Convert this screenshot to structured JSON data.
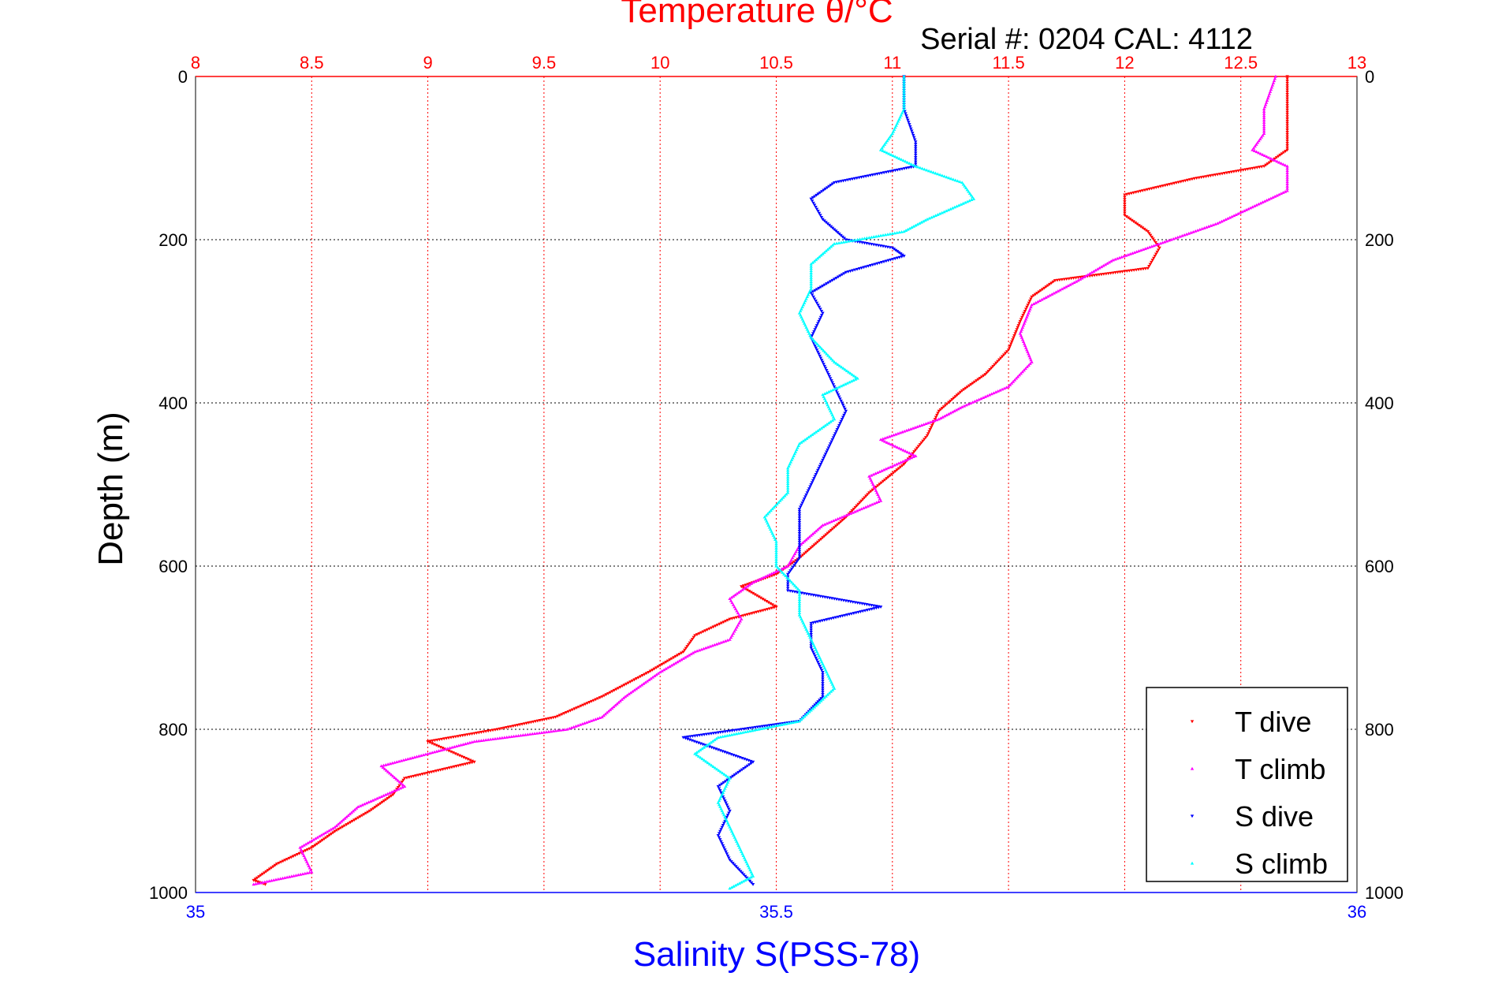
{
  "colors": {
    "temperature_axis": "#ff0000",
    "salinity_axis": "#0000ff",
    "t_dive": "#ff0000",
    "t_climb": "#ff00ff",
    "s_dive": "#0000ff",
    "s_climb": "#00ffff",
    "grid_temperature": "#ff0000",
    "grid_depth": "#000000"
  },
  "chart_data": {
    "type": "scatter",
    "title": "Temperature θ/°C",
    "subtitle": "Serial #: 0204  CAL: 4112",
    "xlabel_top": "Temperature θ/°C",
    "xlabel_bottom": "Salinity S(PSS-78)",
    "ylabel": "Depth (m)",
    "temperature_axis": {
      "range": [
        8,
        13
      ],
      "ticks": [
        "8",
        "8.5",
        "9",
        "9.5",
        "10",
        "10.5",
        "11",
        "11.5",
        "12",
        "12.5",
        "13"
      ]
    },
    "salinity_axis": {
      "range": [
        35,
        36
      ],
      "ticks": [
        "35",
        "35.5",
        "36"
      ]
    },
    "depth_axis": {
      "range": [
        0,
        1000
      ],
      "reversed": true,
      "ticks": [
        "0",
        "200",
        "400",
        "600",
        "800",
        "1000"
      ]
    },
    "grid": true,
    "legend_position": "bottom-right",
    "series": [
      {
        "name": "T dive",
        "axis": "temperature",
        "marker": "triangle-down",
        "points": [
          [
            12.7,
            0
          ],
          [
            12.7,
            30
          ],
          [
            12.7,
            60
          ],
          [
            12.7,
            90
          ],
          [
            12.6,
            110
          ],
          [
            12.3,
            125
          ],
          [
            12.0,
            145
          ],
          [
            12.0,
            170
          ],
          [
            12.1,
            190
          ],
          [
            12.15,
            210
          ],
          [
            12.1,
            235
          ],
          [
            11.7,
            250
          ],
          [
            11.6,
            270
          ],
          [
            11.55,
            300
          ],
          [
            11.5,
            335
          ],
          [
            11.4,
            365
          ],
          [
            11.3,
            385
          ],
          [
            11.2,
            410
          ],
          [
            11.15,
            440
          ],
          [
            11.05,
            475
          ],
          [
            10.9,
            510
          ],
          [
            10.8,
            540
          ],
          [
            10.7,
            565
          ],
          [
            10.6,
            590
          ],
          [
            10.5,
            610
          ],
          [
            10.35,
            625
          ],
          [
            10.5,
            650
          ],
          [
            10.3,
            665
          ],
          [
            10.15,
            685
          ],
          [
            10.1,
            705
          ],
          [
            9.95,
            730
          ],
          [
            9.75,
            760
          ],
          [
            9.55,
            785
          ],
          [
            9.3,
            800
          ],
          [
            9.0,
            815
          ],
          [
            9.2,
            840
          ],
          [
            8.9,
            860
          ],
          [
            8.85,
            880
          ],
          [
            8.75,
            900
          ],
          [
            8.6,
            925
          ],
          [
            8.5,
            945
          ],
          [
            8.35,
            965
          ],
          [
            8.25,
            985
          ],
          [
            8.3,
            990
          ]
        ]
      },
      {
        "name": "T climb",
        "axis": "temperature",
        "marker": "triangle-up",
        "points": [
          [
            12.65,
            0
          ],
          [
            12.6,
            40
          ],
          [
            12.6,
            70
          ],
          [
            12.55,
            90
          ],
          [
            12.7,
            110
          ],
          [
            12.7,
            140
          ],
          [
            12.55,
            160
          ],
          [
            12.4,
            180
          ],
          [
            12.2,
            200
          ],
          [
            11.95,
            225
          ],
          [
            11.8,
            250
          ],
          [
            11.6,
            280
          ],
          [
            11.55,
            315
          ],
          [
            11.6,
            350
          ],
          [
            11.5,
            380
          ],
          [
            11.3,
            405
          ],
          [
            11.2,
            420
          ],
          [
            10.95,
            445
          ],
          [
            11.1,
            465
          ],
          [
            10.9,
            490
          ],
          [
            10.95,
            520
          ],
          [
            10.7,
            550
          ],
          [
            10.6,
            575
          ],
          [
            10.55,
            600
          ],
          [
            10.4,
            620
          ],
          [
            10.3,
            640
          ],
          [
            10.35,
            665
          ],
          [
            10.3,
            690
          ],
          [
            10.15,
            705
          ],
          [
            10.0,
            730
          ],
          [
            9.85,
            760
          ],
          [
            9.75,
            785
          ],
          [
            9.6,
            800
          ],
          [
            9.2,
            815
          ],
          [
            9.0,
            830
          ],
          [
            8.8,
            845
          ],
          [
            8.9,
            870
          ],
          [
            8.7,
            895
          ],
          [
            8.6,
            920
          ],
          [
            8.45,
            945
          ],
          [
            8.5,
            975
          ],
          [
            8.25,
            990
          ]
        ]
      },
      {
        "name": "S dive",
        "axis": "salinity",
        "marker": "triangle-down",
        "points": [
          [
            35.61,
            0
          ],
          [
            35.61,
            40
          ],
          [
            35.62,
            80
          ],
          [
            35.62,
            110
          ],
          [
            35.55,
            130
          ],
          [
            35.53,
            150
          ],
          [
            35.54,
            175
          ],
          [
            35.56,
            200
          ],
          [
            35.6,
            210
          ],
          [
            35.61,
            220
          ],
          [
            35.56,
            240
          ],
          [
            35.53,
            265
          ],
          [
            35.54,
            290
          ],
          [
            35.53,
            320
          ],
          [
            35.54,
            350
          ],
          [
            35.55,
            380
          ],
          [
            35.56,
            410
          ],
          [
            35.55,
            440
          ],
          [
            35.54,
            470
          ],
          [
            35.53,
            500
          ],
          [
            35.52,
            530
          ],
          [
            35.52,
            560
          ],
          [
            35.52,
            590
          ],
          [
            35.51,
            610
          ],
          [
            35.51,
            630
          ],
          [
            35.59,
            650
          ],
          [
            35.53,
            670
          ],
          [
            35.53,
            700
          ],
          [
            35.54,
            730
          ],
          [
            35.54,
            760
          ],
          [
            35.52,
            790
          ],
          [
            35.42,
            810
          ],
          [
            35.48,
            840
          ],
          [
            35.45,
            870
          ],
          [
            35.46,
            900
          ],
          [
            35.45,
            930
          ],
          [
            35.46,
            960
          ],
          [
            35.48,
            990
          ]
        ]
      },
      {
        "name": "S climb",
        "axis": "salinity",
        "marker": "triangle-up",
        "points": [
          [
            35.61,
            0
          ],
          [
            35.61,
            40
          ],
          [
            35.6,
            70
          ],
          [
            35.59,
            90
          ],
          [
            35.62,
            110
          ],
          [
            35.66,
            130
          ],
          [
            35.67,
            150
          ],
          [
            35.63,
            175
          ],
          [
            35.61,
            190
          ],
          [
            35.55,
            205
          ],
          [
            35.53,
            230
          ],
          [
            35.53,
            260
          ],
          [
            35.52,
            290
          ],
          [
            35.53,
            320
          ],
          [
            35.55,
            350
          ],
          [
            35.57,
            370
          ],
          [
            35.54,
            390
          ],
          [
            35.55,
            420
          ],
          [
            35.52,
            450
          ],
          [
            35.51,
            480
          ],
          [
            35.51,
            510
          ],
          [
            35.49,
            540
          ],
          [
            35.5,
            570
          ],
          [
            35.5,
            600
          ],
          [
            35.52,
            630
          ],
          [
            35.52,
            660
          ],
          [
            35.53,
            690
          ],
          [
            35.54,
            720
          ],
          [
            35.55,
            750
          ],
          [
            35.52,
            790
          ],
          [
            35.45,
            810
          ],
          [
            35.43,
            830
          ],
          [
            35.46,
            860
          ],
          [
            35.45,
            890
          ],
          [
            35.46,
            920
          ],
          [
            35.47,
            950
          ],
          [
            35.48,
            980
          ],
          [
            35.46,
            995
          ]
        ]
      }
    ]
  }
}
